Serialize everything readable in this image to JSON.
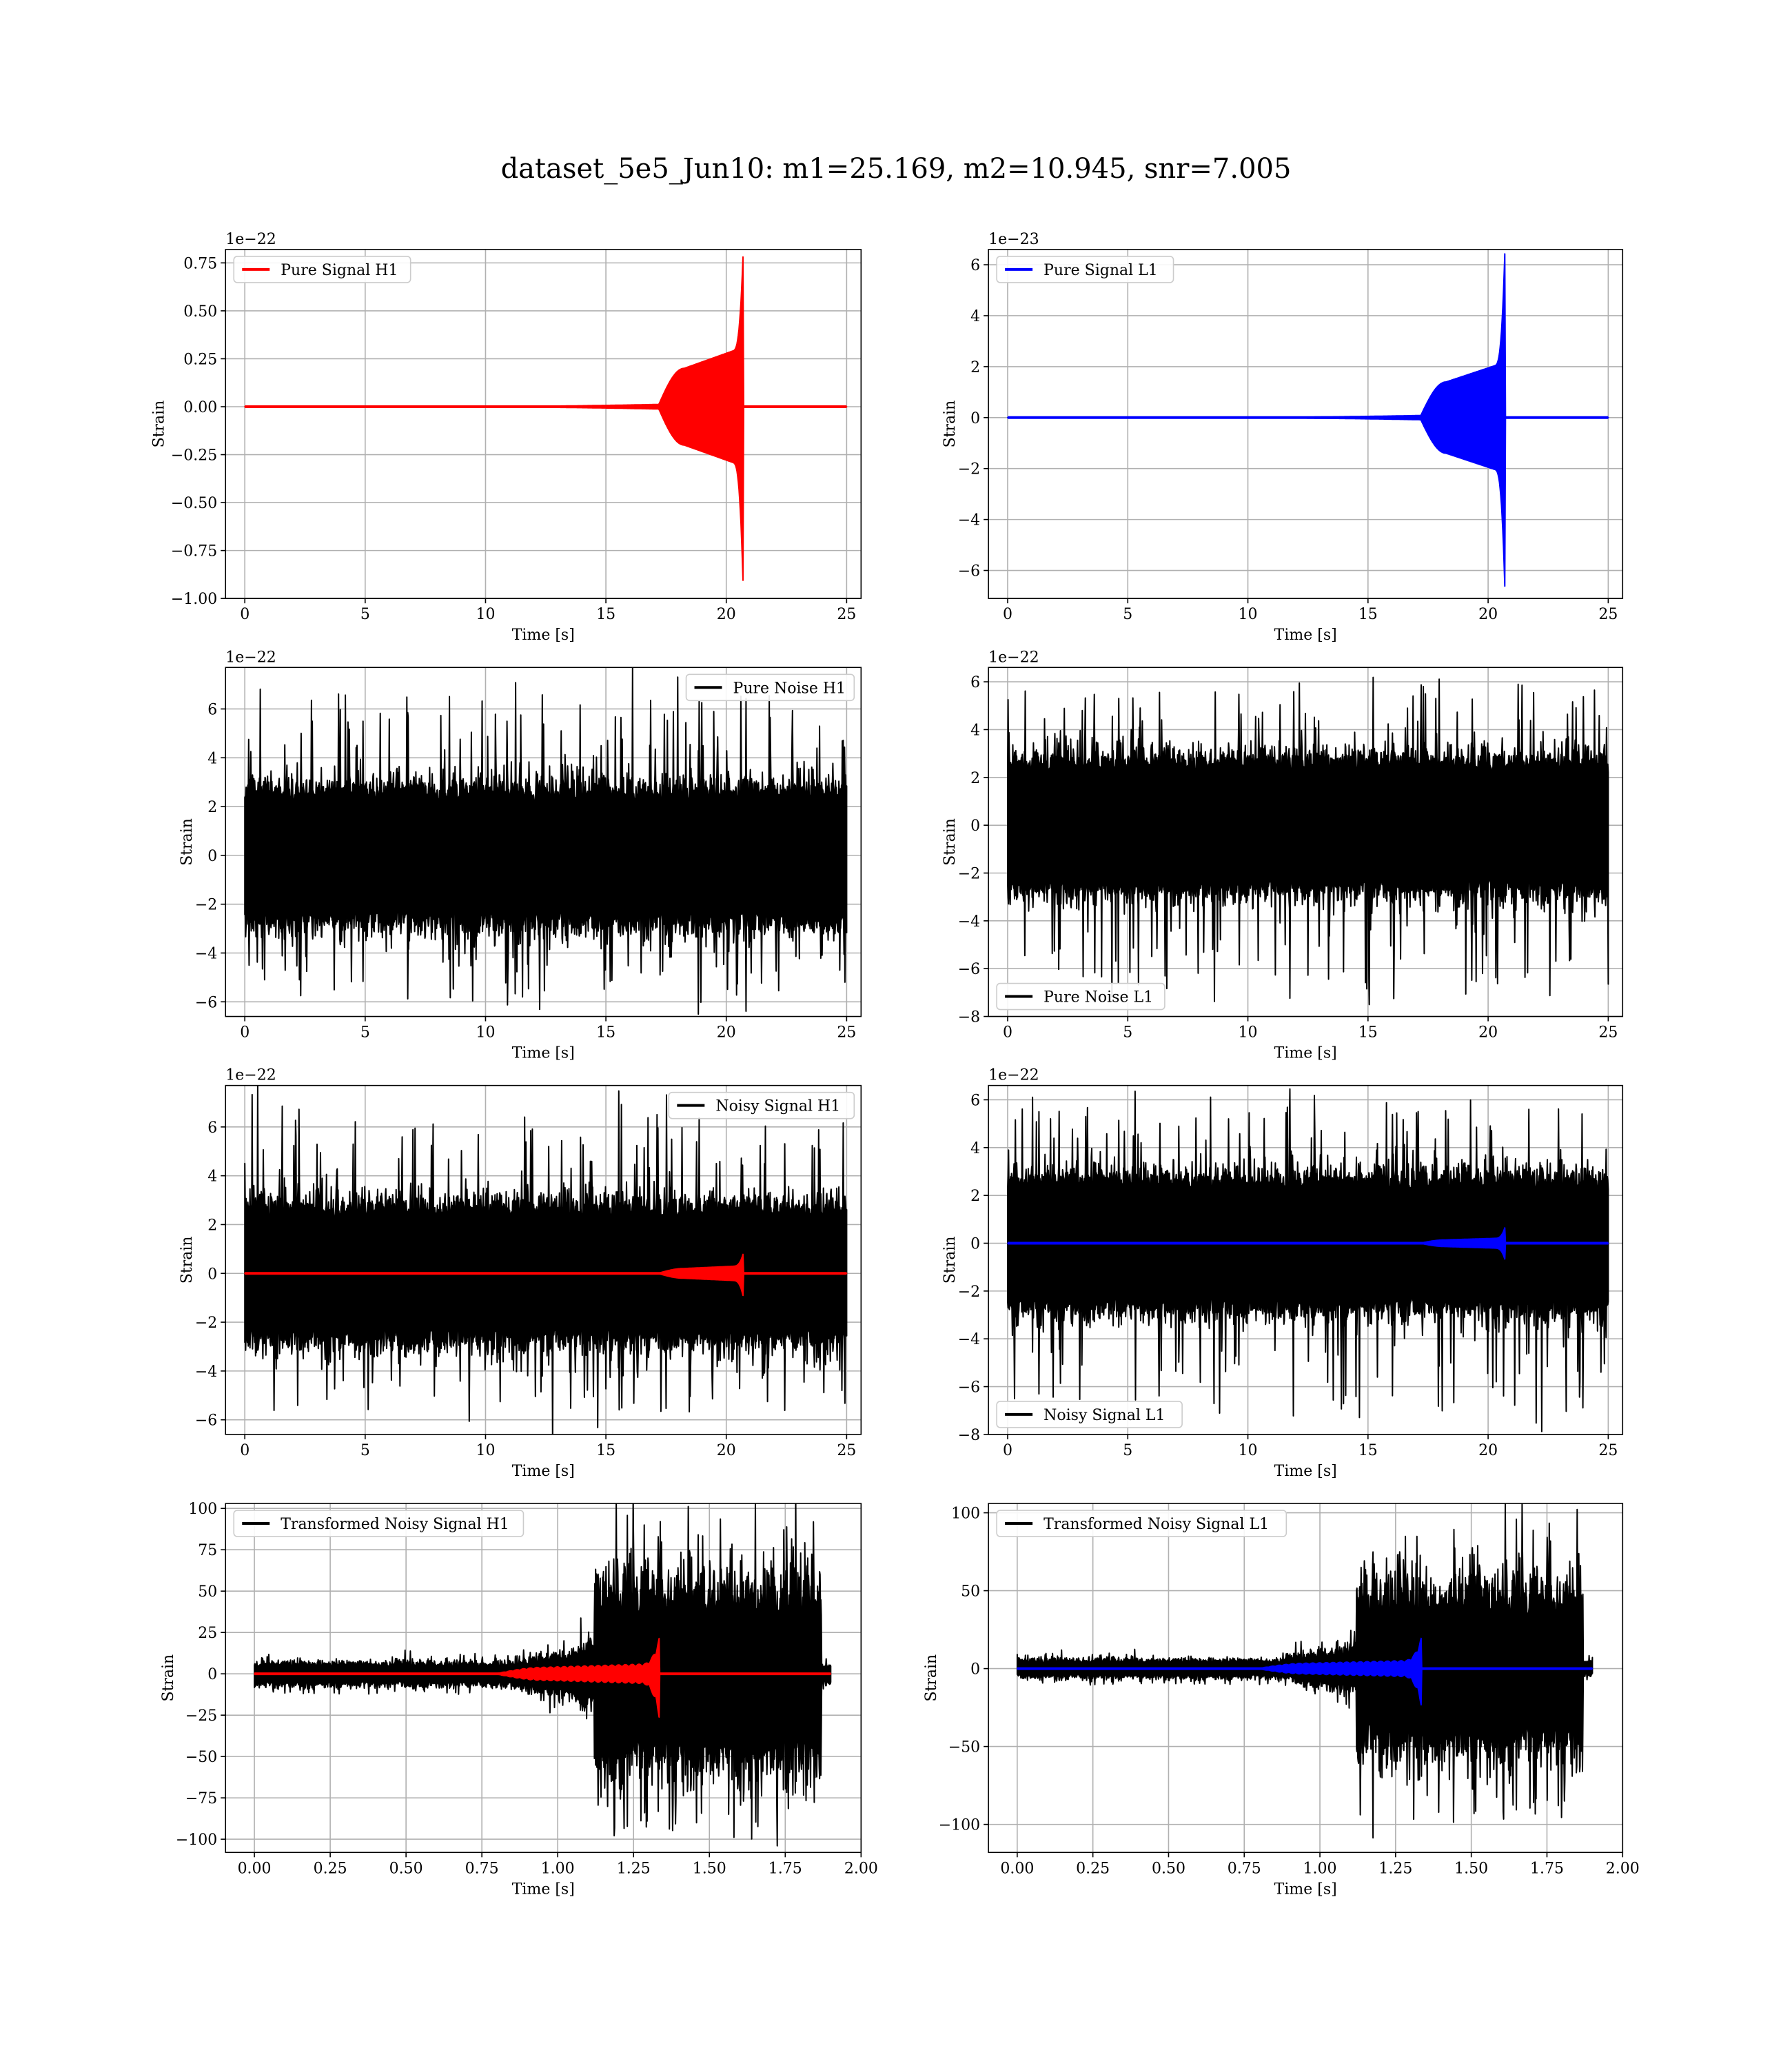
{
  "figure": {
    "title": "dataset_5e5_Jun10: m1=25.169, m2=10.945, snr=7.005"
  },
  "chart_data": [
    {
      "type": "line",
      "xlabel": "Time [s]",
      "ylabel": "Strain",
      "offset_text": "1e−22",
      "xlim": [
        -0.8,
        25.6
      ],
      "ylim": [
        -1.0,
        0.82
      ],
      "xticks": [
        0,
        5,
        10,
        15,
        20,
        25
      ],
      "xtick_labels": [
        "0",
        "5",
        "10",
        "15",
        "20",
        "25"
      ],
      "yticks": [
        -1.0,
        -0.75,
        -0.5,
        -0.25,
        0.0,
        0.25,
        0.5,
        0.75
      ],
      "ytick_labels": [
        "−1.00",
        "−0.75",
        "−0.50",
        "−0.25",
        "0.00",
        "0.25",
        "0.50",
        "0.75"
      ],
      "grid": true,
      "legend_position": "upper-left",
      "series": [
        {
          "name": "Pure Signal H1",
          "color": "#ff0000",
          "kind": "chirp",
          "x_range": [
            0,
            25
          ],
          "merger_time": 20.7,
          "onset_time": 17.2,
          "amp_shoulder": 0.2,
          "amp_peak": 0.8,
          "amp_min": -0.93
        }
      ]
    },
    {
      "type": "line",
      "xlabel": "Time [s]",
      "ylabel": "Strain",
      "offset_text": "1e−23",
      "xlim": [
        -0.8,
        25.6
      ],
      "ylim": [
        -7.1,
        6.6
      ],
      "xticks": [
        0,
        5,
        10,
        15,
        20,
        25
      ],
      "xtick_labels": [
        "0",
        "5",
        "10",
        "15",
        "20",
        "25"
      ],
      "yticks": [
        -6,
        -4,
        -2,
        0,
        2,
        4,
        6
      ],
      "ytick_labels": [
        "−6",
        "−4",
        "−2",
        "0",
        "2",
        "4",
        "6"
      ],
      "grid": true,
      "legend_position": "upper-left",
      "series": [
        {
          "name": "Pure Signal L1",
          "color": "#0000ff",
          "kind": "chirp",
          "x_range": [
            0,
            25
          ],
          "merger_time": 20.7,
          "onset_time": 17.2,
          "amp_shoulder": 1.4,
          "amp_peak": 6.6,
          "amp_min": -6.8
        }
      ]
    },
    {
      "type": "line",
      "xlabel": "Time [s]",
      "ylabel": "Strain",
      "offset_text": "1e−22",
      "xlim": [
        -0.8,
        25.6
      ],
      "ylim": [
        -6.6,
        7.7
      ],
      "xticks": [
        0,
        5,
        10,
        15,
        20,
        25
      ],
      "xtick_labels": [
        "0",
        "5",
        "10",
        "15",
        "20",
        "25"
      ],
      "yticks": [
        -6,
        -4,
        -2,
        0,
        2,
        4,
        6
      ],
      "ytick_labels": [
        "−6",
        "−4",
        "−2",
        "0",
        "2",
        "4",
        "6"
      ],
      "grid": true,
      "legend_position": "upper-right",
      "series": [
        {
          "name": "Pure Noise H1",
          "color": "#000000",
          "kind": "noise",
          "x_range": [
            0,
            25
          ],
          "core": 2.2,
          "peak_max": 7.1,
          "peak_min": -6.1
        }
      ]
    },
    {
      "type": "line",
      "xlabel": "Time [s]",
      "ylabel": "Strain",
      "offset_text": "1e−22",
      "xlim": [
        -0.8,
        25.6
      ],
      "ylim": [
        -8.0,
        6.6
      ],
      "xticks": [
        0,
        5,
        10,
        15,
        20,
        25
      ],
      "xtick_labels": [
        "0",
        "5",
        "10",
        "15",
        "20",
        "25"
      ],
      "yticks": [
        -8,
        -6,
        -4,
        -2,
        0,
        2,
        4,
        6
      ],
      "ytick_labels": [
        "−8",
        "−6",
        "−4",
        "−2",
        "0",
        "2",
        "4",
        "6"
      ],
      "grid": true,
      "legend_position": "lower-left",
      "series": [
        {
          "name": "Pure Noise L1",
          "color": "#000000",
          "kind": "noise",
          "x_range": [
            0,
            25
          ],
          "core": 2.2,
          "peak_max": 6.1,
          "peak_min": -7.3
        }
      ]
    },
    {
      "type": "line",
      "xlabel": "Time [s]",
      "ylabel": "Strain",
      "offset_text": "1e−22",
      "xlim": [
        -0.8,
        25.6
      ],
      "ylim": [
        -6.6,
        7.7
      ],
      "xticks": [
        0,
        5,
        10,
        15,
        20,
        25
      ],
      "xtick_labels": [
        "0",
        "5",
        "10",
        "15",
        "20",
        "25"
      ],
      "yticks": [
        -6,
        -4,
        -2,
        0,
        2,
        4,
        6
      ],
      "ytick_labels": [
        "−6",
        "−4",
        "−2",
        "0",
        "2",
        "4",
        "6"
      ],
      "grid": true,
      "legend_position": "upper-right",
      "series": [
        {
          "name": "Noisy Signal H1",
          "color": "#000000",
          "kind": "noise",
          "x_range": [
            0,
            25
          ],
          "core": 2.2,
          "peak_max": 7.1,
          "peak_min": -6.1
        },
        {
          "name": "",
          "color": "#ff0000",
          "kind": "chirp",
          "x_range": [
            0,
            25
          ],
          "merger_time": 20.7,
          "onset_time": 17.2,
          "amp_shoulder": 0.2,
          "amp_peak": 0.8,
          "amp_min": -0.93
        }
      ]
    },
    {
      "type": "line",
      "xlabel": "Time [s]",
      "ylabel": "Strain",
      "offset_text": "1e−22",
      "xlim": [
        -0.8,
        25.6
      ],
      "ylim": [
        -8.0,
        6.6
      ],
      "xticks": [
        0,
        5,
        10,
        15,
        20,
        25
      ],
      "xtick_labels": [
        "0",
        "5",
        "10",
        "15",
        "20",
        "25"
      ],
      "yticks": [
        -8,
        -6,
        -4,
        -2,
        0,
        2,
        4,
        6
      ],
      "ytick_labels": [
        "−8",
        "−6",
        "−4",
        "−2",
        "0",
        "2",
        "4",
        "6"
      ],
      "grid": true,
      "legend_position": "lower-left",
      "series": [
        {
          "name": "Noisy Signal L1",
          "color": "#000000",
          "kind": "noise",
          "x_range": [
            0,
            25
          ],
          "core": 2.2,
          "peak_max": 6.1,
          "peak_min": -7.3
        },
        {
          "name": "",
          "color": "#0000ff",
          "kind": "chirp",
          "x_range": [
            0,
            25
          ],
          "merger_time": 20.7,
          "onset_time": 17.2,
          "amp_shoulder": 0.14,
          "amp_peak": 0.66,
          "amp_min": -0.68
        }
      ]
    },
    {
      "type": "line",
      "xlabel": "Time [s]",
      "ylabel": "Strain",
      "offset_text": "",
      "xlim": [
        -0.095,
        2.0
      ],
      "ylim": [
        -108,
        103
      ],
      "xticks": [
        0.0,
        0.25,
        0.5,
        0.75,
        1.0,
        1.25,
        1.5,
        1.75,
        2.0
      ],
      "xtick_labels": [
        "0.00",
        "0.25",
        "0.50",
        "0.75",
        "1.00",
        "1.25",
        "1.50",
        "1.75",
        "2.00"
      ],
      "yticks": [
        -100,
        -75,
        -50,
        -25,
        0,
        25,
        50,
        75,
        100
      ],
      "ytick_labels": [
        "−100",
        "−75",
        "−50",
        "−25",
        "0",
        "25",
        "50",
        "75",
        "100"
      ],
      "grid": true,
      "legend_position": "upper-left",
      "series": [
        {
          "name": "Transformed Noisy Signal H1",
          "color": "#000000",
          "kind": "whitened",
          "x_range": [
            0,
            1.9
          ],
          "low_amp": 6,
          "rise_start": 0.85,
          "rise_amp": 15,
          "jump_time": 1.12,
          "jump_end": 1.87,
          "high_amp": 48,
          "peak": 96,
          "trough": -106
        },
        {
          "name": "",
          "color": "#ff0000",
          "kind": "chirp",
          "x_range": [
            0,
            1.9
          ],
          "merger_time": 1.335,
          "onset_time": 0.8,
          "amp_shoulder": 4,
          "amp_peak": 22,
          "amp_min": -27
        }
      ]
    },
    {
      "type": "line",
      "xlabel": "Time [s]",
      "ylabel": "Strain",
      "offset_text": "",
      "xlim": [
        -0.095,
        2.0
      ],
      "ylim": [
        -118,
        106
      ],
      "xticks": [
        0.0,
        0.25,
        0.5,
        0.75,
        1.0,
        1.25,
        1.5,
        1.75,
        2.0
      ],
      "xtick_labels": [
        "0.00",
        "0.25",
        "0.50",
        "0.75",
        "1.00",
        "1.25",
        "1.50",
        "1.75",
        "2.00"
      ],
      "yticks": [
        -100,
        -50,
        0,
        50,
        100
      ],
      "ytick_labels": [
        "−100",
        "−50",
        "0",
        "50",
        "100"
      ],
      "grid": true,
      "legend_position": "upper-left",
      "series": [
        {
          "name": "Transformed Noisy Signal L1",
          "color": "#000000",
          "kind": "whitened",
          "x_range": [
            0,
            1.9
          ],
          "low_amp": 5,
          "rise_start": 0.85,
          "rise_amp": 13,
          "jump_time": 1.12,
          "jump_end": 1.87,
          "high_amp": 45,
          "peak": 98,
          "trough": -109
        },
        {
          "name": "",
          "color": "#0000ff",
          "kind": "chirp",
          "x_range": [
            0,
            1.9
          ],
          "merger_time": 1.335,
          "onset_time": 0.8,
          "amp_shoulder": 3.5,
          "amp_peak": 20,
          "amp_min": -24
        }
      ]
    }
  ]
}
